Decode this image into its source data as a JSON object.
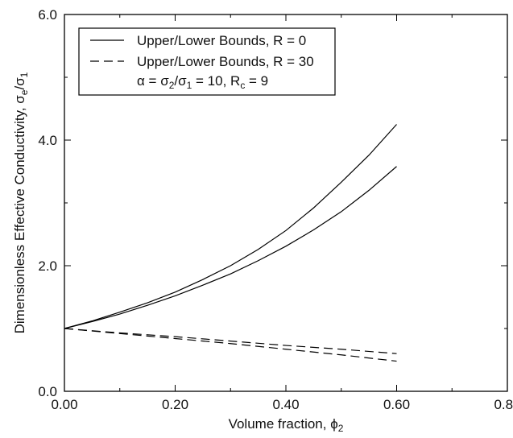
{
  "chart_data": {
    "type": "line",
    "xlabel": "Volume fraction, ϕ",
    "xlabel_sub": "2",
    "ylabel": "Dimensionless Effective Conductivity, σ",
    "ylabel_sub1": "e",
    "ylabel_mid": "/σ",
    "ylabel_sub2": "1",
    "xlim": [
      0,
      0.8
    ],
    "ylim": [
      0,
      6
    ],
    "x_ticks": [
      0,
      0.2,
      0.4,
      0.6,
      0.8
    ],
    "x_tick_labels": [
      "0.00",
      "0.20",
      "0.40",
      "0.60",
      "0.80"
    ],
    "y_ticks": [
      0,
      2,
      4,
      6
    ],
    "y_tick_labels": [
      "0.0",
      "2.0",
      "4.0",
      "6.0"
    ],
    "grid": false,
    "legend_position": "top-left",
    "legend": {
      "entries": [
        {
          "label": "Upper/Lower Bounds, R = 0",
          "style": "solid"
        },
        {
          "label": "Upper/Lower Bounds, R = 30",
          "style": "dashed"
        }
      ],
      "note_parts": {
        "alpha": "α = σ",
        "sub_a": "2",
        "mid": "/σ",
        "sub_b": "1",
        "rest": " = 10, R",
        "sub_c": "c",
        "end": " = 9"
      }
    },
    "series": [
      {
        "style": "solid",
        "x": [
          0,
          0.05,
          0.1,
          0.15,
          0.2,
          0.25,
          0.3,
          0.35,
          0.4,
          0.45,
          0.5,
          0.55,
          0.6
        ],
        "values": [
          1.0,
          1.12,
          1.26,
          1.41,
          1.58,
          1.78,
          2.0,
          2.26,
          2.56,
          2.92,
          3.33,
          3.76,
          4.25
        ]
      },
      {
        "style": "solid",
        "x": [
          0,
          0.05,
          0.1,
          0.15,
          0.2,
          0.25,
          0.3,
          0.35,
          0.4,
          0.45,
          0.5,
          0.55,
          0.6
        ],
        "values": [
          1.0,
          1.11,
          1.23,
          1.37,
          1.52,
          1.69,
          1.87,
          2.08,
          2.31,
          2.57,
          2.86,
          3.2,
          3.58
        ]
      },
      {
        "style": "dashed",
        "x": [
          0,
          0.1,
          0.2,
          0.3,
          0.4,
          0.5,
          0.6
        ],
        "values": [
          1.0,
          0.93,
          0.87,
          0.8,
          0.73,
          0.67,
          0.6
        ]
      },
      {
        "style": "dashed",
        "x": [
          0,
          0.1,
          0.2,
          0.3,
          0.4,
          0.5,
          0.6
        ],
        "values": [
          1.0,
          0.92,
          0.84,
          0.76,
          0.67,
          0.58,
          0.48
        ]
      }
    ]
  }
}
